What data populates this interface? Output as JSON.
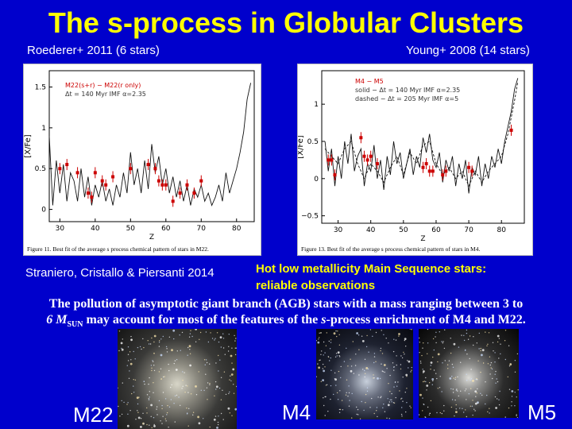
{
  "title": "The s-process in Globular Clusters",
  "captions": {
    "left": "Roederer+ 2011 (6 stars)",
    "right": "Young+ 2008 (14 stars)",
    "straniero": "Straniero, Cristallo & Piersanti 2014"
  },
  "hot_text": {
    "line1": "Hot low metallicity Main Sequence stars:",
    "line2": "reliable observations"
  },
  "pollution_text": {
    "line1": "The pollution of asymptotic giant branch (AGB) stars with a mass ranging between 3 to",
    "line2_pre": "6 M",
    "line2_sub": "SUN",
    "line2_mid": " may account for most of the features of the ",
    "line2_em": "s",
    "line2_post": "-process enrichment of M4 and M22."
  },
  "clusters": [
    {
      "label": "M22"
    },
    {
      "label": "M4"
    },
    {
      "label": "M5"
    }
  ],
  "colors": {
    "background": "#0000cc",
    "title": "#ffff00",
    "data_red": "#cc0000"
  },
  "chart_data": [
    {
      "type": "line",
      "id": "m22",
      "ylabel": "[X/Fe]",
      "xlabel": "Z",
      "xlim": [
        27,
        85
      ],
      "ylim": [
        -0.15,
        1.7
      ],
      "xticks": [
        30,
        40,
        50,
        60,
        70,
        80
      ],
      "yticks": [
        0,
        0.5,
        1,
        1.5
      ],
      "ytick_labels": [
        "0",
        "0.5",
        "1",
        "1.5"
      ],
      "legend": {
        "line1": "M22(s+r) − M22(r only)",
        "line2": "Δt = 140 Myr   IMF α=2.35"
      },
      "figure_caption": "Figure 11. Best fit of the average s process chemical pattern of stars in M22.",
      "model": {
        "x": [
          27,
          28,
          29,
          30,
          31,
          32,
          33,
          34,
          35,
          36,
          37,
          38,
          39,
          40,
          41,
          42,
          43,
          44,
          45,
          46,
          47,
          48,
          49,
          50,
          51,
          52,
          53,
          54,
          55,
          56,
          57,
          58,
          59,
          60,
          61,
          62,
          63,
          64,
          65,
          66,
          67,
          68,
          69,
          70,
          71,
          72,
          73,
          74,
          75,
          76,
          77,
          78,
          79,
          80,
          81,
          82,
          83,
          84
        ],
        "y": [
          0.9,
          0.05,
          0.6,
          0.2,
          0.55,
          0.1,
          0.45,
          0.35,
          0.1,
          0.5,
          0.15,
          0.4,
          0.05,
          0.3,
          0.15,
          0.35,
          0.1,
          0.25,
          0.05,
          0.3,
          0.15,
          0.45,
          0.2,
          0.7,
          0.3,
          0.5,
          0.2,
          0.6,
          0.25,
          0.8,
          0.45,
          0.65,
          0.3,
          0.5,
          0.2,
          0.4,
          0.15,
          0.35,
          0.1,
          0.3,
          0.05,
          0.25,
          0.15,
          0.3,
          0.1,
          0.2,
          0.05,
          0.15,
          0.3,
          0.1,
          0.45,
          0.2,
          0.35,
          0.5,
          0.7,
          0.95,
          1.35,
          1.55
        ]
      },
      "observed": {
        "x": [
          30,
          32,
          35,
          38,
          39,
          40,
          42,
          43,
          45,
          50,
          55,
          57,
          58,
          59,
          60,
          62,
          64,
          66,
          68,
          70
        ],
        "y": [
          0.5,
          0.55,
          0.45,
          0.2,
          0.15,
          0.45,
          0.35,
          0.3,
          0.4,
          0.5,
          0.55,
          0.5,
          0.35,
          0.3,
          0.3,
          0.1,
          0.2,
          0.3,
          0.2,
          0.35
        ]
      }
    },
    {
      "type": "line",
      "id": "m4",
      "ylabel": "[X/Fe]",
      "xlabel": "Z",
      "xlim": [
        25,
        87
      ],
      "ylim": [
        -0.6,
        1.45
      ],
      "xticks": [
        30,
        40,
        50,
        60,
        70,
        80
      ],
      "yticks": [
        -0.5,
        0,
        0.5,
        1
      ],
      "ytick_labels": [
        "−0.5",
        "0",
        "0.5",
        "1"
      ],
      "legend": {
        "line1": "M4 − M5",
        "line2": "solid − Δt = 140 Myr   IMF α=2.35",
        "line3": "dashed − Δt = 205 Myr   IMF α=5"
      },
      "figure_caption": "Figure 13. Best fit of the average s process chemical pattern of stars in M4.",
      "model_solid": {
        "x": [
          26,
          27,
          28,
          29,
          30,
          31,
          32,
          33,
          34,
          35,
          36,
          37,
          38,
          39,
          40,
          41,
          42,
          43,
          44,
          45,
          46,
          47,
          48,
          49,
          50,
          51,
          52,
          53,
          54,
          55,
          56,
          57,
          58,
          59,
          60,
          61,
          62,
          63,
          64,
          65,
          66,
          67,
          68,
          69,
          70,
          71,
          72,
          73,
          74,
          75,
          76,
          77,
          78,
          79,
          80,
          81,
          82,
          83,
          84,
          85
        ],
        "y": [
          0.5,
          0.1,
          0.4,
          -0.1,
          0.3,
          0.0,
          0.5,
          0.2,
          0.6,
          0.1,
          0.3,
          0.4,
          -0.1,
          0.2,
          0.1,
          0.45,
          0.0,
          0.25,
          -0.15,
          0.3,
          0.05,
          0.5,
          0.2,
          0.35,
          0.0,
          0.2,
          0.4,
          0.05,
          0.3,
          0.15,
          0.55,
          0.35,
          0.6,
          0.25,
          0.15,
          0.35,
          -0.05,
          0.25,
          0.1,
          0.3,
          -0.1,
          0.2,
          0.0,
          0.25,
          -0.2,
          0.15,
          0.05,
          0.3,
          -0.1,
          0.2,
          0.0,
          0.3,
          0.15,
          0.4,
          0.2,
          0.5,
          0.7,
          0.9,
          1.2,
          1.35
        ]
      },
      "model_dashed": {
        "x": [
          26,
          28,
          30,
          32,
          34,
          36,
          38,
          40,
          42,
          44,
          46,
          48,
          50,
          52,
          54,
          56,
          58,
          60,
          62,
          64,
          66,
          68,
          70,
          72,
          74,
          76,
          78,
          80,
          82,
          84,
          85
        ],
        "y": [
          0.4,
          0.3,
          0.2,
          0.4,
          0.5,
          0.2,
          0.0,
          0.2,
          0.1,
          -0.05,
          0.15,
          0.3,
          0.05,
          0.35,
          0.2,
          0.45,
          0.5,
          0.2,
          0.05,
          0.15,
          0.0,
          0.1,
          -0.1,
          0.1,
          -0.05,
          0.1,
          0.2,
          0.3,
          0.6,
          1.05,
          1.3
        ]
      },
      "observed": {
        "x": [
          27,
          28,
          29,
          37,
          38,
          39,
          40,
          42,
          56,
          57,
          58,
          59,
          62,
          63,
          70,
          71,
          83
        ],
        "y": [
          0.25,
          0.25,
          0.05,
          0.55,
          0.3,
          0.25,
          0.3,
          0.2,
          0.15,
          0.2,
          0.1,
          0.1,
          0.05,
          0.1,
          0.15,
          0.1,
          0.65
        ]
      }
    }
  ]
}
